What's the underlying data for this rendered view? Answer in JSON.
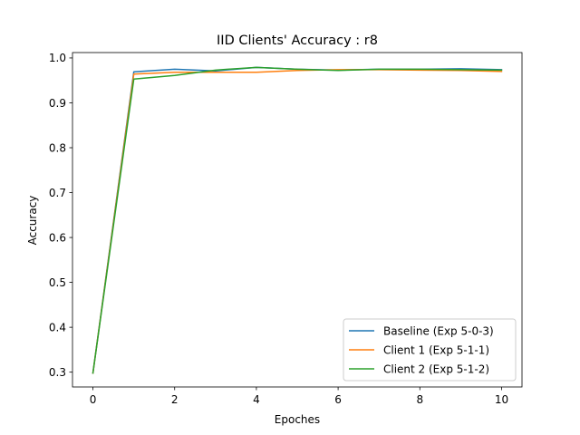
{
  "chart_data": {
    "type": "line",
    "title": "IID Clients' Accuracy : r8",
    "xlabel": "Epoches",
    "ylabel": "Accuracy",
    "xlim": [
      -0.5,
      10.5
    ],
    "ylim": [
      0.267,
      1.012
    ],
    "xticks": [
      0,
      2,
      4,
      6,
      8,
      10
    ],
    "yticks": [
      0.3,
      0.4,
      0.5,
      0.6,
      0.7,
      0.8,
      0.9,
      1.0
    ],
    "ytick_labels": [
      "0.3",
      "0.4",
      "0.5",
      "0.6",
      "0.7",
      "0.8",
      "0.9",
      "1.0"
    ],
    "grid": false,
    "legend_position": "lower-right",
    "x": [
      0,
      1,
      2,
      3,
      4,
      5,
      6,
      7,
      8,
      9,
      10
    ],
    "series": [
      {
        "name": "Baseline (Exp 5-0-3)",
        "color": "#1f77b4",
        "values": [
          0.298,
          0.969,
          0.975,
          0.971,
          0.979,
          0.975,
          0.973,
          0.975,
          0.975,
          0.976,
          0.974
        ]
      },
      {
        "name": "Client 1  (Exp 5-1-1)",
        "color": "#ff7f0e",
        "values": [
          0.298,
          0.964,
          0.968,
          0.968,
          0.968,
          0.972,
          0.974,
          0.974,
          0.973,
          0.972,
          0.97
        ]
      },
      {
        "name": "Client 2  (Exp 5-1-2)",
        "color": "#2ca02c",
        "values": [
          0.298,
          0.953,
          0.961,
          0.973,
          0.979,
          0.975,
          0.972,
          0.975,
          0.975,
          0.974,
          0.973
        ]
      }
    ]
  }
}
